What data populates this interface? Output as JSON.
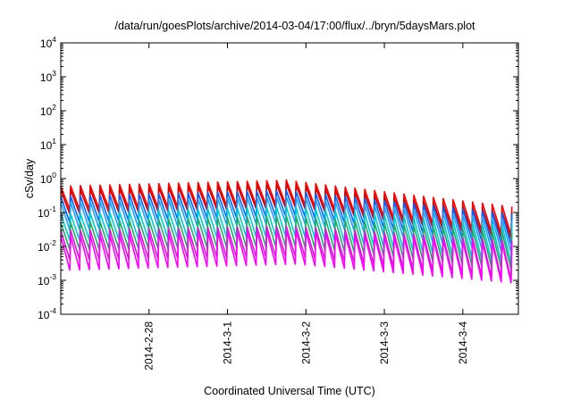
{
  "chart_data": {
    "type": "line",
    "title": "/data/run/goesPlots/archive/2014-03-04/17:00/flux/../bryn/5daysMars.plot",
    "xlabel": "Coordinated Universal Time (UTC)",
    "ylabel": "cSv/day",
    "yscale": "log",
    "ylim": [
      0.0001,
      10000
    ],
    "xlim": [
      "2014-02-26T21:00",
      "2014-03-04T17:00"
    ],
    "x_ticks": [
      {
        "label": "2014-2-28",
        "value": "2014-02-28T00:00"
      },
      {
        "label": "2014-3-1",
        "value": "2014-03-01T00:00"
      },
      {
        "label": "2014-3-2",
        "value": "2014-03-02T00:00"
      },
      {
        "label": "2014-3-3",
        "value": "2014-03-03T00:00"
      },
      {
        "label": "2014-3-4",
        "value": "2014-03-04T00:00"
      }
    ],
    "y_ticks": [
      {
        "base": "10",
        "exp": "4",
        "value": 10000
      },
      {
        "base": "10",
        "exp": "3",
        "value": 1000
      },
      {
        "base": "10",
        "exp": "2",
        "value": 100
      },
      {
        "base": "10",
        "exp": "1",
        "value": 10
      },
      {
        "base": "10",
        "exp": "0",
        "value": 1
      },
      {
        "base": "10",
        "exp": "-1",
        "value": 0.1
      },
      {
        "base": "10",
        "exp": "-2",
        "value": 0.01
      },
      {
        "base": "10",
        "exp": "-3",
        "value": 0.001
      },
      {
        "base": "10",
        "exp": "-4",
        "value": 0.0001
      }
    ],
    "grid": false,
    "legend": "none",
    "series_colors": [
      "#ff0000",
      "#cc0000",
      "#0066ff",
      "#1f9fff",
      "#00cccc",
      "#22aa66",
      "#cc22cc",
      "#ff00ff"
    ],
    "sawtooth_cycle_hours": 3,
    "series": [
      {
        "color": "#ff0000",
        "values": [
          [
            0.6,
            0.12
          ],
          [
            0.9,
            0.18
          ],
          [
            0.15,
            0.02
          ]
        ]
      },
      {
        "color": "#cc0000",
        "values": [
          [
            0.45,
            0.09
          ],
          [
            0.7,
            0.14
          ],
          [
            0.1,
            0.015
          ]
        ]
      },
      {
        "color": "#0066ff",
        "values": [
          [
            0.3,
            0.05
          ],
          [
            0.45,
            0.08
          ],
          [
            0.09,
            0.01
          ]
        ]
      },
      {
        "color": "#1f9fff",
        "values": [
          [
            0.2,
            0.03
          ],
          [
            0.3,
            0.05
          ],
          [
            0.06,
            0.006
          ]
        ]
      },
      {
        "color": "#00cccc",
        "values": [
          [
            0.09,
            0.015
          ],
          [
            0.15,
            0.02
          ],
          [
            0.04,
            0.003
          ]
        ]
      },
      {
        "color": "#22aa66",
        "values": [
          [
            0.05,
            0.008
          ],
          [
            0.08,
            0.01
          ],
          [
            0.025,
            0.002
          ]
        ]
      },
      {
        "color": "#cc22cc",
        "values": [
          [
            0.03,
            0.004
          ],
          [
            0.04,
            0.005
          ],
          [
            0.015,
            0.001
          ]
        ]
      },
      {
        "color": "#ff00ff",
        "values": [
          [
            0.02,
            0.002
          ],
          [
            0.03,
            0.003
          ],
          [
            0.012,
            0.0008
          ]
        ]
      }
    ]
  }
}
